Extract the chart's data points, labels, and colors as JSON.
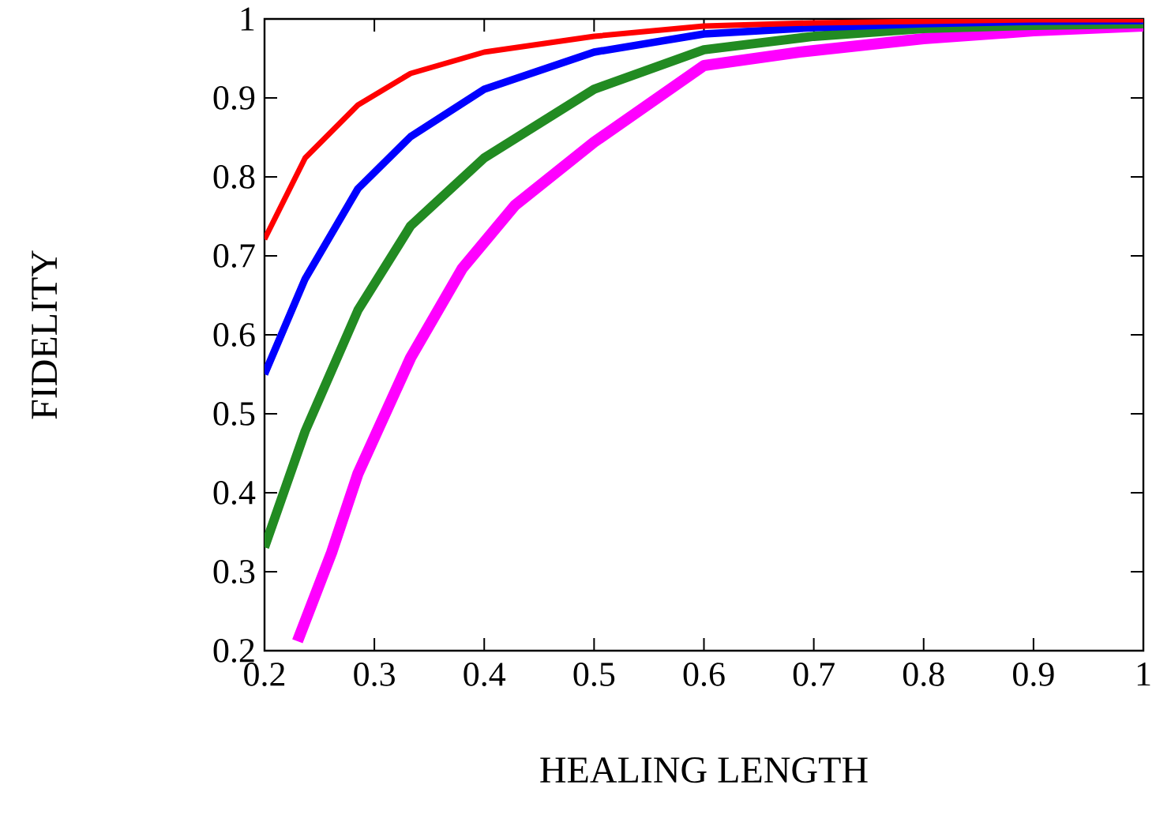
{
  "chart_data": {
    "type": "line",
    "xlabel": "HEALING LENGTH",
    "ylabel": "FIDELITY",
    "xlim": [
      0.2,
      1
    ],
    "ylim": [
      0.2,
      1
    ],
    "xticks": [
      0.2,
      0.3,
      0.4,
      0.5,
      0.6,
      0.7,
      0.8,
      0.9,
      1
    ],
    "yticks": [
      0.2,
      0.3,
      0.4,
      0.5,
      0.6,
      0.7,
      0.8,
      0.9,
      1
    ],
    "series": [
      {
        "color": "#ff0000",
        "x": [
          0.2,
          0.237,
          0.285,
          0.333,
          0.4,
          0.5,
          0.6,
          0.7,
          0.8,
          0.9,
          1.0
        ],
        "values": [
          0.721,
          0.824,
          0.891,
          0.931,
          0.958,
          0.978,
          0.991,
          0.995,
          0.997,
          0.999,
          0.999
        ]
      },
      {
        "color": "#0000ff",
        "x": [
          0.2,
          0.237,
          0.285,
          0.333,
          0.4,
          0.5,
          0.6,
          0.7,
          0.8,
          0.9,
          1.0
        ],
        "values": [
          0.55,
          0.671,
          0.785,
          0.851,
          0.911,
          0.958,
          0.981,
          0.989,
          0.994,
          0.997,
          0.998
        ]
      },
      {
        "color": "#228b22",
        "x": [
          0.2,
          0.237,
          0.285,
          0.333,
          0.4,
          0.5,
          0.6,
          0.7,
          0.8,
          0.9,
          1.0
        ],
        "values": [
          0.331,
          0.478,
          0.631,
          0.738,
          0.824,
          0.911,
          0.961,
          0.978,
          0.988,
          0.992,
          0.994
        ]
      },
      {
        "color": "#ff00ff",
        "x": [
          0.23,
          0.261,
          0.285,
          0.333,
          0.38,
          0.428,
          0.5,
          0.6,
          0.687,
          0.8,
          0.9,
          1.0
        ],
        "values": [
          0.212,
          0.324,
          0.424,
          0.571,
          0.684,
          0.764,
          0.844,
          0.941,
          0.958,
          0.975,
          0.985,
          0.991
        ]
      }
    ]
  }
}
